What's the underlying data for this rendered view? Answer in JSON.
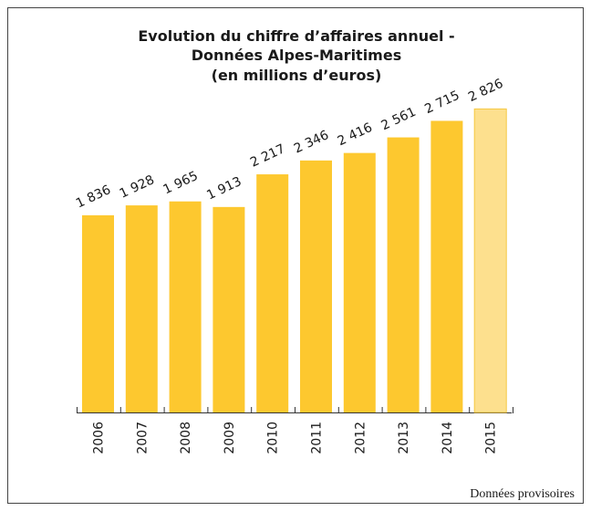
{
  "chart_data": {
    "type": "bar",
    "title": [
      "Evolution du chiffre d’affaires annuel  -",
      "Données Alpes-Maritimes",
      "(en millions d’euros)"
    ],
    "categories": [
      "2006",
      "2007",
      "2008",
      "2009",
      "2010",
      "2011",
      "2012",
      "2013",
      "2014",
      "2015"
    ],
    "values": [
      1836,
      1928,
      1965,
      1913,
      2217,
      2346,
      2416,
      2561,
      2715,
      2826
    ],
    "value_labels": [
      "1 836",
      "1 928",
      "1 965",
      "1 913",
      "2 217",
      "2 346",
      "2 416",
      "2 561",
      "2 715",
      "2 826"
    ],
    "colors": [
      "#fdc82f",
      "#fdc82f",
      "#fdc82f",
      "#fdc82f",
      "#fdc82f",
      "#fdc82f",
      "#fdc82f",
      "#fdc82f",
      "#fdc82f",
      "#fde08e"
    ],
    "note": "Données provisoires"
  }
}
